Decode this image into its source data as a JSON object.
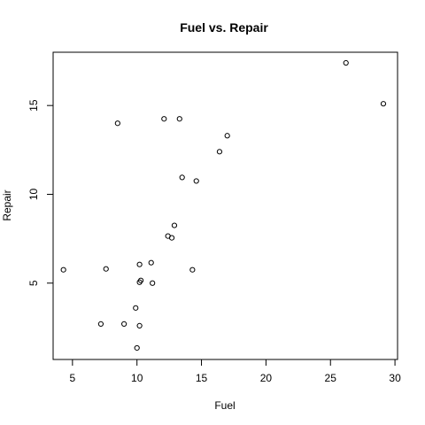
{
  "chart_data": {
    "type": "scatter",
    "title": "Fuel vs. Repair",
    "xlabel": "Fuel",
    "ylabel": "Repair",
    "xlim": [
      3.5,
      30.2
    ],
    "ylim": [
      0.7,
      18.0
    ],
    "x_ticks": [
      5,
      10,
      15,
      20,
      25,
      30
    ],
    "y_ticks": [
      5,
      10,
      15
    ],
    "grid": false,
    "legend": "none",
    "marker": "open-circle",
    "points": [
      {
        "x": 26.2,
        "y": 17.4
      },
      {
        "x": 29.1,
        "y": 15.1
      },
      {
        "x": 8.5,
        "y": 14.0
      },
      {
        "x": 12.1,
        "y": 14.25
      },
      {
        "x": 13.3,
        "y": 14.25
      },
      {
        "x": 17.0,
        "y": 13.3
      },
      {
        "x": 16.4,
        "y": 12.4
      },
      {
        "x": 13.5,
        "y": 10.95
      },
      {
        "x": 14.6,
        "y": 10.75
      },
      {
        "x": 12.9,
        "y": 8.25
      },
      {
        "x": 12.4,
        "y": 7.65
      },
      {
        "x": 12.7,
        "y": 7.55
      },
      {
        "x": 4.3,
        "y": 5.75
      },
      {
        "x": 7.6,
        "y": 5.8
      },
      {
        "x": 10.2,
        "y": 6.05
      },
      {
        "x": 11.1,
        "y": 6.15
      },
      {
        "x": 14.3,
        "y": 5.75
      },
      {
        "x": 10.3,
        "y": 5.15
      },
      {
        "x": 10.2,
        "y": 5.05
      },
      {
        "x": 11.2,
        "y": 5.0
      },
      {
        "x": 9.9,
        "y": 3.6
      },
      {
        "x": 7.2,
        "y": 2.7
      },
      {
        "x": 9.0,
        "y": 2.7
      },
      {
        "x": 10.2,
        "y": 2.6
      },
      {
        "x": 10.0,
        "y": 1.35
      }
    ]
  }
}
